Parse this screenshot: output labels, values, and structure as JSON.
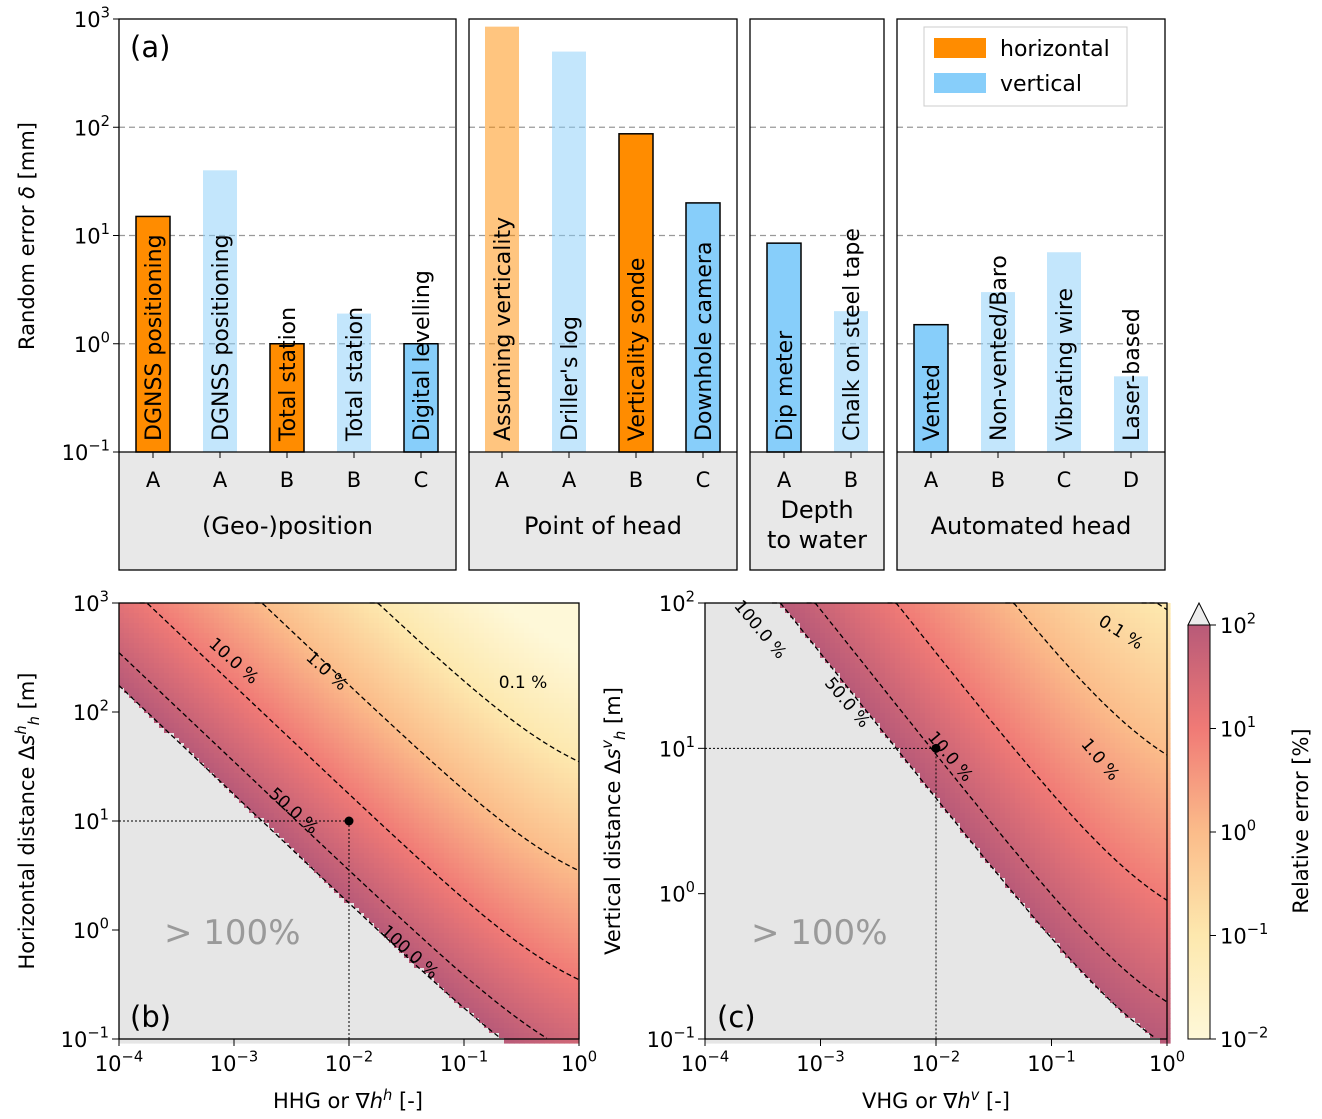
{
  "figure_labels": {
    "a": "(a)",
    "b": "(b)",
    "c": "(c)"
  },
  "legend": [
    {
      "name": "horizontal",
      "color": "#ff8c00"
    },
    {
      "name": "vertical",
      "color": "#87cefa"
    }
  ],
  "colors": {
    "horizontal": "#ff8c00",
    "vertical": "#87cefa",
    "group_bg": "#e8e8e8",
    "grey_region": "#e6e6e6"
  },
  "chart_data": [
    {
      "type": "bar",
      "panel": "(a)",
      "ylabel": "Random error δ [mm]",
      "yscale": "log",
      "ylim": [
        0.1,
        1000
      ],
      "yticks": [
        "10^-1",
        "10^0",
        "10^1",
        "10^2",
        "10^3"
      ],
      "grid": "dashed horizontal at 10^0, 10^1, 10^2",
      "legend_placement": "top-right",
      "groups": [
        {
          "name": "(Geo-)position",
          "bars": [
            {
              "letter": "A",
              "label": "DGNSS positioning",
              "value": 15,
              "component": "horizontal",
              "highlight": true
            },
            {
              "letter": "A",
              "label": "DGNSS positioning",
              "value": 40,
              "component": "vertical",
              "highlight": false
            },
            {
              "letter": "B",
              "label": "Total station",
              "value": 1,
              "component": "horizontal",
              "highlight": true
            },
            {
              "letter": "B",
              "label": "Total station",
              "value": 1.9,
              "component": "vertical",
              "highlight": false
            },
            {
              "letter": "C",
              "label": "Digital levelling",
              "value": 1,
              "component": "vertical",
              "highlight": true
            }
          ]
        },
        {
          "name": "Point of head",
          "bars": [
            {
              "letter": "A",
              "label": "Assuming verticality",
              "value": 850,
              "component": "horizontal",
              "highlight": false
            },
            {
              "letter": "A",
              "label": "Driller's log",
              "value": 500,
              "component": "vertical",
              "highlight": false
            },
            {
              "letter": "B",
              "label": "Verticality sonde",
              "value": 87,
              "component": "horizontal",
              "highlight": true
            },
            {
              "letter": "C",
              "label": "Downhole camera",
              "value": 20,
              "component": "vertical",
              "highlight": true
            }
          ]
        },
        {
          "name": "Depth\nto water",
          "bars": [
            {
              "letter": "A",
              "label": "Dip meter",
              "value": 8.5,
              "component": "vertical",
              "highlight": true
            },
            {
              "letter": "B",
              "label": "Chalk on steel tape",
              "value": 2,
              "component": "vertical",
              "highlight": false
            }
          ]
        },
        {
          "name": "Automated head",
          "bars": [
            {
              "letter": "A",
              "label": "Vented",
              "value": 1.5,
              "component": "vertical",
              "highlight": true
            },
            {
              "letter": "B",
              "label": "Non-vented/Baro",
              "value": 3,
              "component": "vertical",
              "highlight": false
            },
            {
              "letter": "C",
              "label": "Vibrating wire",
              "value": 7,
              "component": "vertical",
              "highlight": false
            },
            {
              "letter": "D",
              "label": "Laser-based",
              "value": 0.5,
              "component": "vertical",
              "highlight": false
            }
          ]
        }
      ]
    },
    {
      "type": "heatmap",
      "panel": "(b)",
      "xlabel": "HHG or ∇h^h [-]",
      "ylabel": "Horizontal distance Δs_h^h [m]",
      "xscale": "log",
      "yscale": "log",
      "xlim": [
        0.0001,
        1
      ],
      "ylim": [
        0.1,
        1000
      ],
      "contour_levels": [
        "0.1 %",
        "1.0 %",
        "10.0 %",
        "50.0 %",
        "100.0 %"
      ],
      "contour_asymptotes_m": [
        17.5,
        1.75,
        0.35,
        0.175
      ],
      "region_text": "> 100%",
      "marker": {
        "x": 0.01,
        "y": 10
      }
    },
    {
      "type": "heatmap",
      "panel": "(c)",
      "xlabel": "VHG or ∇h^v [-]",
      "ylabel": "Vertical distance Δs_h^v [m]",
      "xscale": "log",
      "yscale": "log",
      "xlim": [
        0.0001,
        1
      ],
      "ylim": [
        0.1,
        100
      ],
      "contour_levels": [
        "0.1 %",
        "1.0 %",
        "10.0 %",
        "50.0 %",
        "100.0 %"
      ],
      "contour_asymptotes_m": [
        45,
        4.5,
        0.45
      ],
      "region_text": "> 100%",
      "marker": {
        "x": 0.01,
        "y": 10
      }
    }
  ],
  "colorbar": {
    "label": "Relative error [%]",
    "scale": "log",
    "range": [
      0.01,
      100
    ],
    "ticks": [
      "10^-2",
      "10^-1",
      "10^0",
      "10^1",
      "10^2"
    ],
    "extend": "max"
  }
}
